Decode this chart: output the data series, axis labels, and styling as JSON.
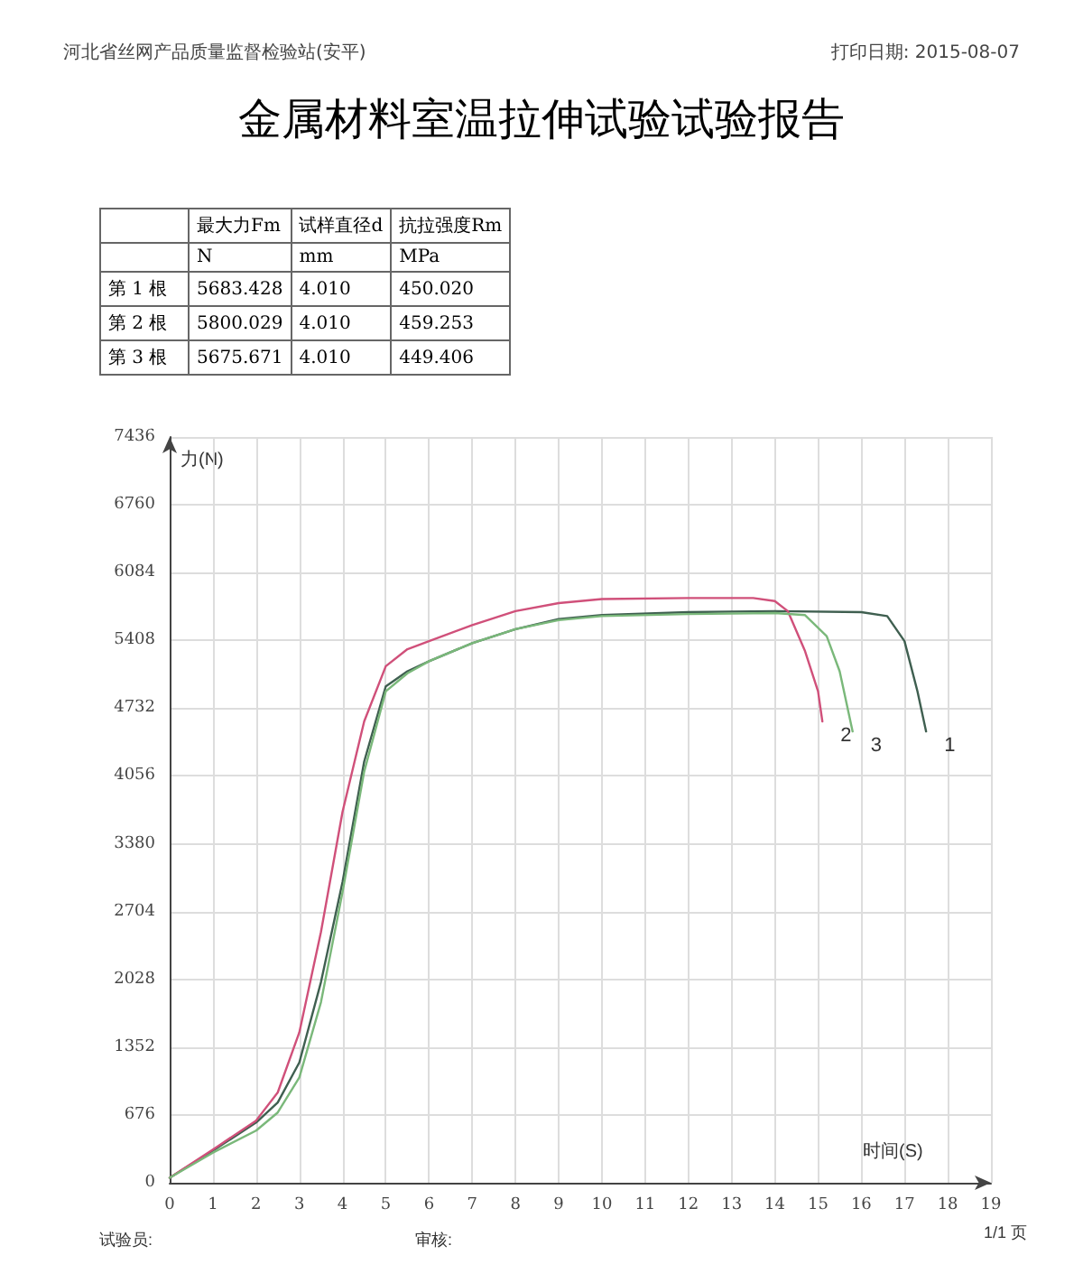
{
  "chart_data": [
    {
      "type": "other",
      "title": "金属材料室温拉伸试验试验报告",
      "annotations": [
        "河北省丝网产品质量监督检验站(安平)",
        "打印日期: 2015-08-07"
      ],
      "cell_labels": [
        [
          null,
          "最大力Fm",
          "试样直径d",
          "抗拉强度Rm"
        ],
        [
          null,
          "N",
          "mm",
          "MPa"
        ],
        [
          "第 1 根",
          "5683.428",
          "4.010",
          "450.020"
        ],
        [
          "第 2 根",
          "5800.029",
          "4.010",
          "459.253"
        ],
        [
          "第 3 根",
          "5675.671",
          "4.010",
          "449.406"
        ]
      ]
    },
    {
      "type": "line",
      "xlabel": "时间(S)",
      "ylabel": "力(N)",
      "xlim": [
        0,
        19
      ],
      "xticks": [
        0,
        1,
        2,
        3,
        4,
        5,
        6,
        7,
        8,
        9,
        10,
        11,
        12,
        13,
        14,
        15,
        16,
        17,
        18,
        19
      ],
      "ylim": [
        0,
        7436
      ],
      "yticks": [
        0,
        676,
        1352,
        2028,
        2704,
        3380,
        4056,
        4732,
        5408,
        6084,
        6760,
        7436
      ],
      "grid": true,
      "legend": false,
      "marker": "none",
      "line_style": "solid",
      "annotations": [
        "试验员:",
        "审核:",
        "1/1 页"
      ],
      "series": [
        {
          "name": "1",
          "color": "#3f5f50",
          "x": [
            0,
            1,
            2,
            2.5,
            3,
            3.5,
            4,
            4.5,
            5,
            5.5,
            6,
            7,
            8,
            9,
            10,
            12,
            14,
            16,
            16.6,
            17,
            17.3,
            17.5
          ],
          "values": [
            50,
            320,
            600,
            800,
            1200,
            2000,
            3000,
            4200,
            4950,
            5100,
            5200,
            5380,
            5520,
            5620,
            5660,
            5690,
            5700,
            5690,
            5650,
            5400,
            4900,
            4500
          ]
        },
        {
          "name": "2",
          "color": "#d0507a",
          "x": [
            0,
            1,
            2,
            2.5,
            3,
            3.5,
            4,
            4.5,
            5,
            5.5,
            6,
            7,
            8,
            9,
            10,
            12,
            13.5,
            14,
            14.3,
            14.7,
            15,
            15.1
          ],
          "values": [
            50,
            330,
            620,
            900,
            1500,
            2500,
            3700,
            4600,
            5150,
            5320,
            5400,
            5560,
            5700,
            5780,
            5820,
            5830,
            5830,
            5800,
            5700,
            5300,
            4900,
            4600
          ]
        },
        {
          "name": "3",
          "color": "#7ab87a",
          "x": [
            0,
            1,
            2,
            2.5,
            3,
            3.5,
            4,
            4.5,
            5,
            5.5,
            6,
            7,
            8,
            9,
            10,
            12,
            14,
            14.7,
            15.2,
            15.5,
            15.8
          ],
          "values": [
            50,
            300,
            520,
            700,
            1050,
            1800,
            2900,
            4100,
            4900,
            5080,
            5200,
            5380,
            5520,
            5610,
            5650,
            5670,
            5680,
            5660,
            5450,
            5100,
            4500
          ]
        }
      ]
    }
  ]
}
